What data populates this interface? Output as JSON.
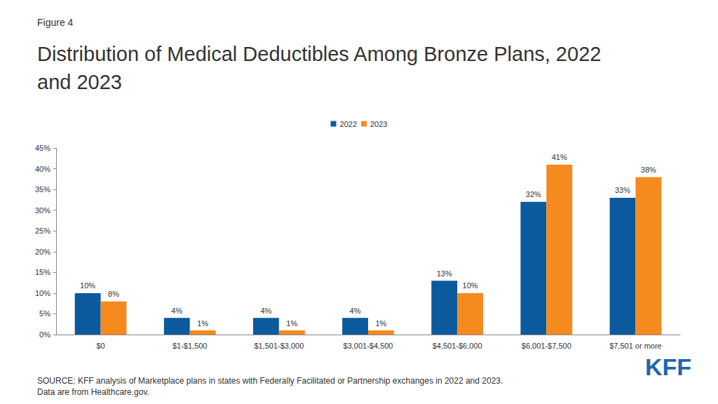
{
  "chart_data": {
    "type": "bar",
    "title": "Distribution of Medical Deductibles Among Bronze Plans, 2022 and 2023",
    "categories": [
      "$0",
      "$1-$1,500",
      "$1,501-$3,000",
      "$3,001-$4,500",
      "$4,501-$6,000",
      "$6,001-$7,500",
      "$7,501 or more"
    ],
    "series": [
      {
        "name": "2022",
        "color": "#0b5a9e",
        "values": [
          10,
          4,
          4,
          4,
          13,
          32,
          33
        ],
        "value_labels": [
          "10%",
          "4%",
          "4%",
          "4%",
          "13%",
          "32%",
          "33%"
        ]
      },
      {
        "name": "2023",
        "color": "#f58a1f",
        "values": [
          8,
          1,
          1,
          1,
          10,
          41,
          38
        ],
        "value_labels": [
          "8%",
          "1%",
          "1%",
          "1%",
          "10%",
          "41%",
          "38%"
        ]
      }
    ],
    "ylim": [
      0,
      45
    ],
    "yticks": [
      {
        "value": 0,
        "label": "0%"
      },
      {
        "value": 5,
        "label": "5%"
      },
      {
        "value": 10,
        "label": "10%"
      },
      {
        "value": 15,
        "label": "15%"
      },
      {
        "value": 20,
        "label": "20%"
      },
      {
        "value": 25,
        "label": "25%"
      },
      {
        "value": 30,
        "label": "30%"
      },
      {
        "value": 35,
        "label": "35%"
      },
      {
        "value": 40,
        "label": "40%"
      },
      {
        "value": 45,
        "label": "45%"
      }
    ],
    "grid": false,
    "legend": "top",
    "data_labels": true
  },
  "figure_label": "Figure 4",
  "source": "SOURCE: KFF analysis of Marketplace plans in states with Federally Facilitated or Partnership exchanges in 2022 and 2023. Data are from Healthcare.gov.",
  "logo": "KFF"
}
